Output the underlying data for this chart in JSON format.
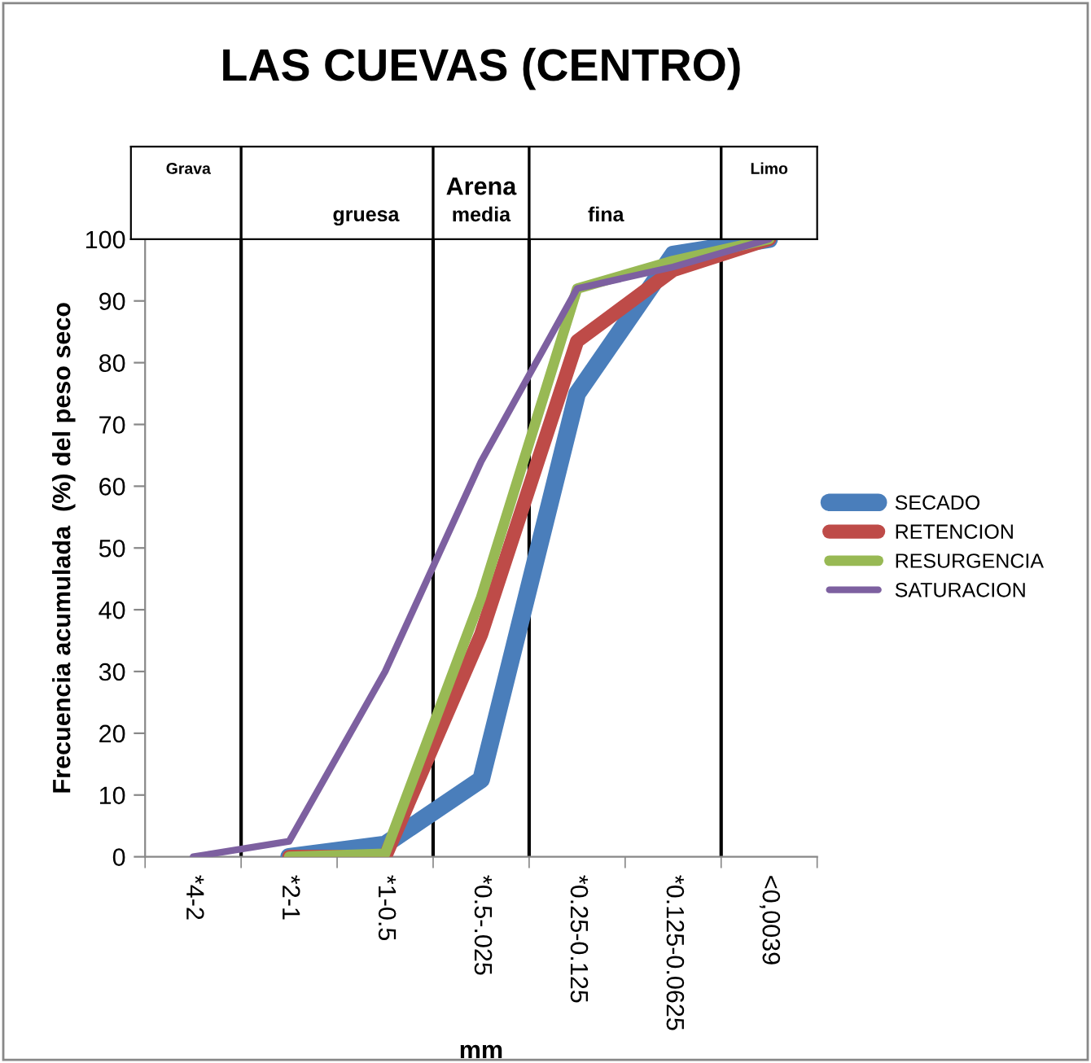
{
  "chart_data": {
    "type": "line",
    "title": "LAS CUEVAS (CENTRO)",
    "xlabel": "mm",
    "ylabel": "Frecuencia acumulada  (%) del peso seco",
    "categories": [
      "*4-2",
      "*2-1",
      "*1-0.5",
      "*0.5-.025",
      "*0.25-0.125",
      "*0.125-0.0625",
      "<0,0039"
    ],
    "series": [
      {
        "name": "SECADO",
        "color": "#4a7ebb",
        "values": [
          null,
          0,
          2,
          12.5,
          75,
          97.5,
          100
        ]
      },
      {
        "name": "RETENCION",
        "color": "#be4b48",
        "values": [
          null,
          0,
          0,
          36,
          83.5,
          95,
          100
        ]
      },
      {
        "name": "RESURGENCIA",
        "color": "#98b954",
        "values": [
          null,
          0,
          0.5,
          42,
          92,
          96.5,
          100
        ]
      },
      {
        "name": "SATURACION",
        "color": "#7d60a0",
        "values": [
          0,
          2.5,
          30,
          64,
          92,
          95.5,
          100
        ]
      }
    ],
    "ylim": [
      0,
      100
    ],
    "yticks": [
      0,
      10,
      20,
      30,
      40,
      50,
      60,
      70,
      80,
      90,
      100
    ],
    "annotations": [
      "Grava",
      "Arena",
      "gruesa",
      "media",
      "fina",
      "Limo"
    ],
    "grid": false,
    "legend": "right",
    "marker": "none",
    "line_style": "solid"
  }
}
